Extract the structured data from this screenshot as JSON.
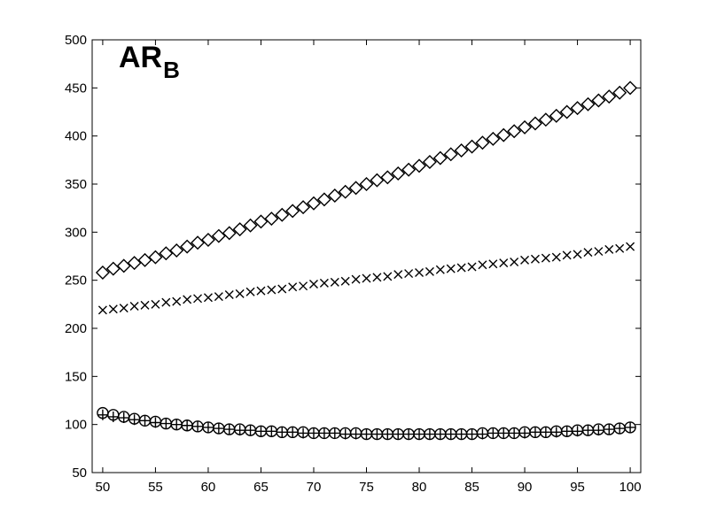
{
  "chart_data": {
    "type": "scatter",
    "title": "AR",
    "title_subscript": "B",
    "xlabel": "",
    "ylabel": "",
    "xlim": [
      49,
      101
    ],
    "ylim": [
      50,
      500
    ],
    "xticks": [
      50,
      55,
      60,
      65,
      70,
      75,
      80,
      85,
      90,
      95,
      100
    ],
    "yticks": [
      50,
      100,
      150,
      200,
      250,
      300,
      350,
      400,
      450,
      500
    ],
    "grid": false,
    "legend": "none",
    "x": [
      50,
      51,
      52,
      53,
      54,
      55,
      56,
      57,
      58,
      59,
      60,
      61,
      62,
      63,
      64,
      65,
      66,
      67,
      68,
      69,
      70,
      71,
      72,
      73,
      74,
      75,
      76,
      77,
      78,
      79,
      80,
      81,
      82,
      83,
      84,
      85,
      86,
      87,
      88,
      89,
      90,
      91,
      92,
      93,
      94,
      95,
      96,
      97,
      98,
      99,
      100
    ],
    "series": [
      {
        "marker": "diamond",
        "values": [
          258,
          262,
          265,
          268,
          271,
          274,
          278,
          281,
          285,
          289,
          292,
          296,
          299,
          303,
          307,
          311,
          314,
          318,
          322,
          326,
          330,
          334,
          338,
          342,
          346,
          350,
          354,
          357,
          361,
          365,
          369,
          373,
          377,
          381,
          385,
          389,
          393,
          397,
          401,
          405,
          409,
          413,
          417,
          421,
          425,
          429,
          433,
          437,
          441,
          445,
          450
        ]
      },
      {
        "marker": "x",
        "values": [
          219,
          220,
          221,
          223,
          224,
          225,
          227,
          228,
          230,
          231,
          232,
          233,
          235,
          236,
          238,
          239,
          240,
          241,
          243,
          244,
          246,
          247,
          248,
          249,
          251,
          252,
          253,
          254,
          256,
          257,
          258,
          259,
          261,
          262,
          263,
          264,
          266,
          267,
          268,
          269,
          271,
          272,
          273,
          274,
          276,
          277,
          279,
          280,
          282,
          283,
          285
        ]
      },
      {
        "marker": "circle",
        "values": [
          112,
          110,
          108,
          106,
          104,
          103,
          101,
          100,
          99,
          98,
          97,
          96,
          95,
          95,
          94,
          93,
          93,
          92,
          92,
          92,
          91,
          91,
          91,
          91,
          91,
          90,
          90,
          90,
          90,
          90,
          90,
          90,
          90,
          90,
          90,
          90,
          91,
          91,
          91,
          91,
          92,
          92,
          92,
          93,
          93,
          94,
          94,
          95,
          95,
          96,
          97
        ]
      },
      {
        "marker": "plus",
        "values": [
          110,
          108,
          107,
          105,
          104,
          102,
          101,
          100,
          99,
          98,
          97,
          96,
          95,
          94,
          94,
          93,
          93,
          92,
          92,
          91,
          91,
          91,
          91,
          90,
          90,
          90,
          90,
          90,
          90,
          90,
          90,
          90,
          90,
          90,
          90,
          90,
          90,
          91,
          91,
          91,
          91,
          92,
          92,
          92,
          93,
          93,
          94,
          94,
          95,
          96,
          97
        ]
      }
    ]
  }
}
